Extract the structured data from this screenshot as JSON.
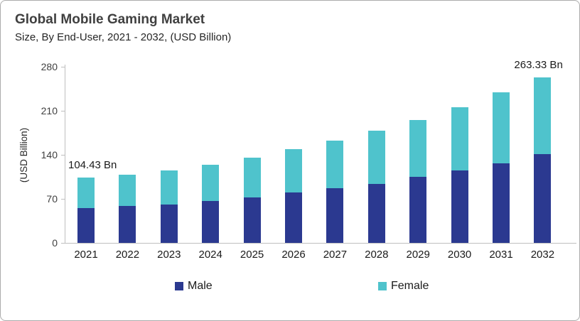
{
  "header": {
    "title": "Global Mobile Gaming Market",
    "subtitle": "Size, By End-User, 2021 - 2032, (USD Billion)"
  },
  "chart_data": {
    "type": "bar",
    "stacked": true,
    "title": "Global Mobile Gaming Market",
    "subtitle": "Size, By End-User, 2021 - 2032, (USD Billion)",
    "xlabel": "",
    "ylabel": "(USD Billion)",
    "ylim": [
      0,
      280
    ],
    "yticks": [
      0,
      70,
      140,
      210,
      280
    ],
    "grid": false,
    "legend_position": "bottom",
    "categories": [
      "2021",
      "2022",
      "2023",
      "2024",
      "2025",
      "2026",
      "2027",
      "2028",
      "2029",
      "2030",
      "2031",
      "2032"
    ],
    "series": [
      {
        "name": "Male",
        "color": "#2b3990",
        "values": [
          55.9,
          58.4,
          61.4,
          67.1,
          72.8,
          79.7,
          86.8,
          94.2,
          104.8,
          115.0,
          126.9,
          140.8
        ]
      },
      {
        "name": "Female",
        "color": "#4fc3cc",
        "values": [
          48.53,
          50.1,
          54.1,
          57.2,
          62.9,
          69.0,
          75.3,
          83.8,
          90.7,
          100.4,
          112.1,
          122.53
        ]
      }
    ],
    "totals": [
      104.43,
      108.5,
      115.5,
      124.3,
      135.7,
      148.7,
      162.1,
      178.0,
      195.5,
      215.4,
      239.0,
      263.33
    ],
    "annotations": [
      {
        "category": "2021",
        "text": "104.43 Bn"
      },
      {
        "category": "2032",
        "text": "263.33 Bn"
      }
    ]
  },
  "colors": {
    "male": "#2b3990",
    "female": "#4fc3cc",
    "axis": "#bfbfbf",
    "title_text": "#404040",
    "body_text": "#1a1a1a",
    "border": "#ababab"
  }
}
